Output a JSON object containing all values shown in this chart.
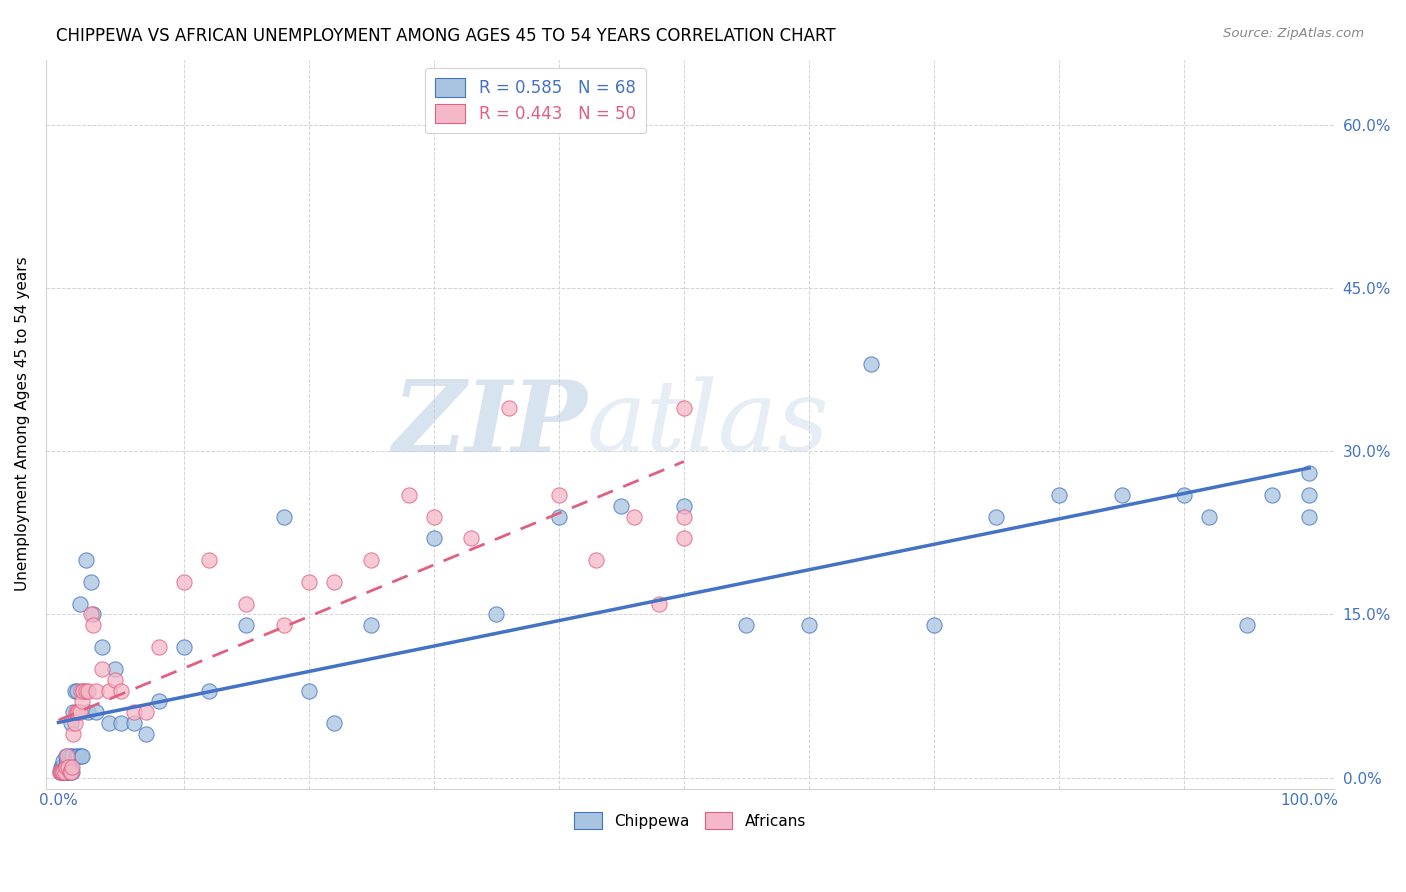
{
  "title": "CHIPPEWA VS AFRICAN UNEMPLOYMENT AMONG AGES 45 TO 54 YEARS CORRELATION CHART",
  "source": "Source: ZipAtlas.com",
  "ylabel": "Unemployment Among Ages 45 to 54 years",
  "chippewa_color": "#a8c4e0",
  "african_color": "#f4b8c8",
  "chippewa_line_color": "#4472c4",
  "african_line_color": "#e06080",
  "watermark_zip": "ZIP",
  "watermark_atlas": "atlas",
  "legend_r_chippewa": "R = 0.585",
  "legend_n_chippewa": "N = 68",
  "legend_r_african": "R = 0.443",
  "legend_n_african": "N = 50",
  "chippewa_x": [
    0.001,
    0.002,
    0.002,
    0.003,
    0.003,
    0.004,
    0.004,
    0.005,
    0.005,
    0.006,
    0.006,
    0.007,
    0.007,
    0.008,
    0.008,
    0.009,
    0.009,
    0.01,
    0.01,
    0.011,
    0.011,
    0.012,
    0.013,
    0.014,
    0.015,
    0.016,
    0.017,
    0.018,
    0.019,
    0.02,
    0.022,
    0.024,
    0.026,
    0.028,
    0.03,
    0.035,
    0.04,
    0.045,
    0.05,
    0.06,
    0.07,
    0.08,
    0.1,
    0.12,
    0.15,
    0.18,
    0.2,
    0.22,
    0.25,
    0.3,
    0.35,
    0.4,
    0.45,
    0.5,
    0.55,
    0.6,
    0.65,
    0.7,
    0.75,
    0.8,
    0.85,
    0.9,
    0.92,
    0.95,
    0.97,
    1.0,
    1.0,
    1.0
  ],
  "chippewa_y": [
    0.005,
    0.005,
    0.01,
    0.005,
    0.01,
    0.005,
    0.015,
    0.005,
    0.01,
    0.005,
    0.02,
    0.005,
    0.015,
    0.005,
    0.01,
    0.005,
    0.02,
    0.01,
    0.05,
    0.005,
    0.02,
    0.06,
    0.08,
    0.02,
    0.08,
    0.02,
    0.16,
    0.02,
    0.02,
    0.08,
    0.2,
    0.06,
    0.18,
    0.15,
    0.06,
    0.12,
    0.05,
    0.1,
    0.05,
    0.05,
    0.04,
    0.07,
    0.12,
    0.08,
    0.14,
    0.24,
    0.08,
    0.05,
    0.14,
    0.22,
    0.15,
    0.24,
    0.25,
    0.25,
    0.14,
    0.14,
    0.38,
    0.14,
    0.24,
    0.26,
    0.26,
    0.26,
    0.24,
    0.14,
    0.26,
    0.28,
    0.26,
    0.24
  ],
  "african_x": [
    0.001,
    0.002,
    0.003,
    0.004,
    0.005,
    0.006,
    0.007,
    0.008,
    0.009,
    0.01,
    0.011,
    0.012,
    0.013,
    0.014,
    0.015,
    0.016,
    0.017,
    0.018,
    0.019,
    0.02,
    0.022,
    0.024,
    0.026,
    0.028,
    0.03,
    0.035,
    0.04,
    0.045,
    0.05,
    0.06,
    0.07,
    0.08,
    0.1,
    0.12,
    0.15,
    0.18,
    0.2,
    0.22,
    0.25,
    0.28,
    0.3,
    0.33,
    0.36,
    0.4,
    0.43,
    0.46,
    0.48,
    0.5,
    0.5,
    0.5
  ],
  "african_y": [
    0.005,
    0.005,
    0.005,
    0.005,
    0.005,
    0.01,
    0.02,
    0.01,
    0.005,
    0.005,
    0.01,
    0.04,
    0.05,
    0.06,
    0.06,
    0.06,
    0.06,
    0.08,
    0.07,
    0.08,
    0.08,
    0.08,
    0.15,
    0.14,
    0.08,
    0.1,
    0.08,
    0.09,
    0.08,
    0.06,
    0.06,
    0.12,
    0.18,
    0.2,
    0.16,
    0.14,
    0.18,
    0.18,
    0.2,
    0.26,
    0.24,
    0.22,
    0.34,
    0.26,
    0.2,
    0.24,
    0.16,
    0.24,
    0.22,
    0.34
  ],
  "xlim": [
    0.0,
    1.0
  ],
  "ylim": [
    0.0,
    0.65
  ],
  "yticks": [
    0.0,
    0.15,
    0.3,
    0.45,
    0.6
  ],
  "ytick_labels": [
    "0.0%",
    "15.0%",
    "30.0%",
    "45.0%",
    "60.0%"
  ],
  "xtick_labels_show": [
    "0.0%",
    "100.0%"
  ],
  "title_fontsize": 12,
  "tick_label_color": "#4472c4"
}
